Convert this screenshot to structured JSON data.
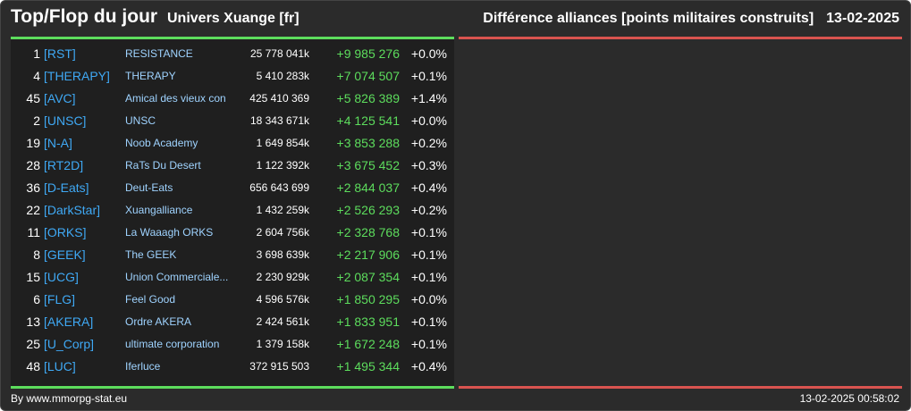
{
  "header": {
    "title": "Top/Flop du jour",
    "subtitle": "Univers Xuange [fr]",
    "right_title": "Différence alliances [points militaires construits]",
    "date": "13-02-2025"
  },
  "colors": {
    "background": "#2b2b2b",
    "panel": "#1f1f1f",
    "top_bar": "#5ddd5d",
    "flop_bar": "#d9534f",
    "tag": "#3fa9f5",
    "name": "#9fd3ff",
    "positive": "#5ddd5d"
  },
  "top_rows": [
    {
      "rank": "1",
      "tag": "[RST]",
      "name": "RESISTANCE",
      "points": "25 778 041k",
      "diff": "+9 985 276",
      "pct": "+0.0%"
    },
    {
      "rank": "4",
      "tag": "[THERAPY]",
      "name": "THERAPY",
      "points": "5 410 283k",
      "diff": "+7 074 507",
      "pct": "+0.1%"
    },
    {
      "rank": "45",
      "tag": "[AVC]",
      "name": "Amical des vieux con",
      "points": "425 410 369",
      "diff": "+5 826 389",
      "pct": "+1.4%"
    },
    {
      "rank": "2",
      "tag": "[UNSC]",
      "name": "UNSC",
      "points": "18 343 671k",
      "diff": "+4 125 541",
      "pct": "+0.0%"
    },
    {
      "rank": "19",
      "tag": "[N-A]",
      "name": "Noob Academy",
      "points": "1 649 854k",
      "diff": "+3 853 288",
      "pct": "+0.2%"
    },
    {
      "rank": "28",
      "tag": "[RT2D]",
      "name": "RaTs Du Desert",
      "points": "1 122 392k",
      "diff": "+3 675 452",
      "pct": "+0.3%"
    },
    {
      "rank": "36",
      "tag": "[D-Eats]",
      "name": "Deut-Eats",
      "points": "656 643 699",
      "diff": "+2 844 037",
      "pct": "+0.4%"
    },
    {
      "rank": "22",
      "tag": "[DarkStar]",
      "name": "Xuangalliance",
      "points": "1 432 259k",
      "diff": "+2 526 293",
      "pct": "+0.2%"
    },
    {
      "rank": "11",
      "tag": "[ORKS]",
      "name": "La Waaagh ORKS",
      "points": "2 604 756k",
      "diff": "+2 328 768",
      "pct": "+0.1%"
    },
    {
      "rank": "8",
      "tag": "[GEEK]",
      "name": "The GEEK",
      "points": "3 698 639k",
      "diff": "+2 217 906",
      "pct": "+0.1%"
    },
    {
      "rank": "15",
      "tag": "[UCG]",
      "name": "Union Commerciale...",
      "points": "2 230 929k",
      "diff": "+2 087 354",
      "pct": "+0.1%"
    },
    {
      "rank": "6",
      "tag": "[FLG]",
      "name": "Feel Good",
      "points": "4 596 576k",
      "diff": "+1 850 295",
      "pct": "+0.0%"
    },
    {
      "rank": "13",
      "tag": "[AKERA]",
      "name": "Ordre AKERA",
      "points": "2 424 561k",
      "diff": "+1 833 951",
      "pct": "+0.1%"
    },
    {
      "rank": "25",
      "tag": "[U_Corp]",
      "name": "ultimate corporation",
      "points": "1 379 158k",
      "diff": "+1 672 248",
      "pct": "+0.1%"
    },
    {
      "rank": "48",
      "tag": "[LUC]",
      "name": "Iferluce",
      "points": "372 915 503",
      "diff": "+1 495 344",
      "pct": "+0.4%"
    }
  ],
  "footer": {
    "left": "By www.mmorpg-stat.eu",
    "right": "13-02-2025 00:58:02"
  }
}
